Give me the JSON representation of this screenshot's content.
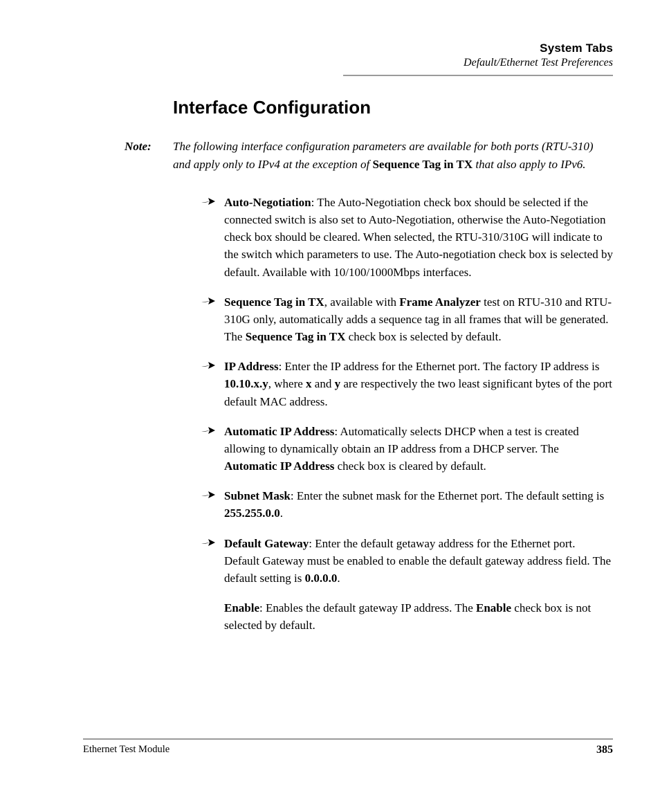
{
  "header": {
    "title": "System Tabs",
    "subtitle": "Default/Ethernet Test Preferences"
  },
  "section_title": "Interface Configuration",
  "note": {
    "label": "Note:",
    "pre": "The following interface configuration parameters are available for both ports (RTU-310) and apply only to IPv4 at the exception of ",
    "bold": "Sequence Tag in TX",
    "post": " that also apply to IPv6."
  },
  "bullets": [
    {
      "segments": [
        {
          "b": true,
          "t": "Auto-Negotiation"
        },
        {
          "b": false,
          "t": ": The Auto-Negotiation check box should be selected if the connected switch is also set to Auto-Negotiation, otherwise the Auto-Negotiation check box should be cleared. When selected, the RTU-310/310G will indicate to the switch which parameters to use. The Auto-negotiation check box is selected by default. Available with 10/100/1000Mbps interfaces."
        }
      ]
    },
    {
      "segments": [
        {
          "b": true,
          "t": "Sequence Tag in TX"
        },
        {
          "b": false,
          "t": ", available with "
        },
        {
          "b": true,
          "t": "Frame Analyzer"
        },
        {
          "b": false,
          "t": " test on RTU-310 and RTU-310G only, automatically adds a sequence tag in all frames that will be generated. The "
        },
        {
          "b": true,
          "t": "Sequence Tag in TX"
        },
        {
          "b": false,
          "t": " check box is selected by default."
        }
      ]
    },
    {
      "segments": [
        {
          "b": true,
          "t": "IP Address"
        },
        {
          "b": false,
          "t": ": Enter the IP address for the Ethernet port. The factory IP address is "
        },
        {
          "b": true,
          "t": "10.10.x.y"
        },
        {
          "b": false,
          "t": ", where "
        },
        {
          "b": true,
          "t": "x"
        },
        {
          "b": false,
          "t": " and "
        },
        {
          "b": true,
          "t": "y"
        },
        {
          "b": false,
          "t": " are respectively the two least significant bytes of the port default MAC address."
        }
      ]
    },
    {
      "segments": [
        {
          "b": true,
          "t": "Automatic IP Address"
        },
        {
          "b": false,
          "t": ": Automatically selects DHCP when a test is created allowing to dynamically obtain an IP address from a DHCP server. The "
        },
        {
          "b": true,
          "t": "Automatic IP Address"
        },
        {
          "b": false,
          "t": " check box is cleared by default."
        }
      ]
    },
    {
      "segments": [
        {
          "b": true,
          "t": "Subnet Mask"
        },
        {
          "b": false,
          "t": ": Enter the subnet mask for the Ethernet port. The default setting is "
        },
        {
          "b": true,
          "t": "255.255.0.0"
        },
        {
          "b": false,
          "t": "."
        }
      ]
    },
    {
      "segments": [
        {
          "b": true,
          "t": "Default Gateway"
        },
        {
          "b": false,
          "t": ": Enter the default getaway address for the Ethernet port. Default Gateway must be enabled to enable the default gateway address field. The default setting is "
        },
        {
          "b": true,
          "t": "0.0.0.0"
        },
        {
          "b": false,
          "t": "."
        }
      ]
    }
  ],
  "sub_para": {
    "segments": [
      {
        "b": true,
        "t": "Enable"
      },
      {
        "b": false,
        "t": ": Enables the default gateway IP address. The "
      },
      {
        "b": true,
        "t": "Enable"
      },
      {
        "b": false,
        "t": " check box is not selected by default."
      }
    ]
  },
  "footer": {
    "left": "Ethernet Test Module",
    "page": "385"
  },
  "style": {
    "arrow_fill": "#000000",
    "rule_color": "#9a9a9a"
  }
}
